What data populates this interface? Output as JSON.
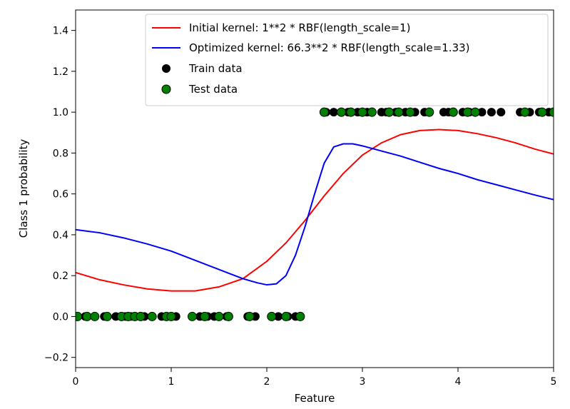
{
  "chart_data": {
    "type": "scatter",
    "xlabel": "Feature",
    "ylabel": "Class 1 probability",
    "xlim": [
      0,
      5
    ],
    "ylim": [
      -0.25,
      1.5
    ],
    "x_ticks": [
      0,
      1,
      2,
      3,
      4,
      5
    ],
    "x_tick_labels": [
      "0",
      "1",
      "2",
      "3",
      "4",
      "5"
    ],
    "y_ticks": [
      -0.2,
      0.0,
      0.2,
      0.4,
      0.6,
      0.8,
      1.0,
      1.2,
      1.4
    ],
    "y_tick_labels": [
      "−0.2",
      "0.0",
      "0.2",
      "0.4",
      "0.6",
      "0.8",
      "1.0",
      "1.2",
      "1.4"
    ],
    "grid": false,
    "legend_position": "top-right",
    "series": [
      {
        "name": "Initial kernel: 1**2 * RBF(length_scale=1)",
        "kind": "line",
        "color": "#ff0000",
        "points": [
          [
            0.0,
            0.215
          ],
          [
            0.25,
            0.18
          ],
          [
            0.5,
            0.155
          ],
          [
            0.75,
            0.135
          ],
          [
            1.0,
            0.125
          ],
          [
            1.25,
            0.125
          ],
          [
            1.5,
            0.145
          ],
          [
            1.75,
            0.185
          ],
          [
            2.0,
            0.27
          ],
          [
            2.2,
            0.36
          ],
          [
            2.4,
            0.47
          ],
          [
            2.6,
            0.59
          ],
          [
            2.8,
            0.7
          ],
          [
            3.0,
            0.79
          ],
          [
            3.2,
            0.85
          ],
          [
            3.4,
            0.89
          ],
          [
            3.6,
            0.91
          ],
          [
            3.8,
            0.915
          ],
          [
            4.0,
            0.91
          ],
          [
            4.2,
            0.895
          ],
          [
            4.4,
            0.875
          ],
          [
            4.6,
            0.85
          ],
          [
            4.8,
            0.82
          ],
          [
            5.0,
            0.795
          ]
        ]
      },
      {
        "name": "Optimized kernel: 66.3**2 * RBF(length_scale=1.33)",
        "kind": "line",
        "color": "#0000ff",
        "points": [
          [
            0.0,
            0.425
          ],
          [
            0.25,
            0.41
          ],
          [
            0.5,
            0.385
          ],
          [
            0.75,
            0.355
          ],
          [
            1.0,
            0.32
          ],
          [
            1.25,
            0.275
          ],
          [
            1.5,
            0.23
          ],
          [
            1.75,
            0.185
          ],
          [
            1.9,
            0.165
          ],
          [
            2.0,
            0.155
          ],
          [
            2.1,
            0.16
          ],
          [
            2.2,
            0.2
          ],
          [
            2.3,
            0.3
          ],
          [
            2.4,
            0.44
          ],
          [
            2.5,
            0.6
          ],
          [
            2.6,
            0.75
          ],
          [
            2.7,
            0.83
          ],
          [
            2.8,
            0.845
          ],
          [
            2.9,
            0.845
          ],
          [
            3.0,
            0.835
          ],
          [
            3.2,
            0.81
          ],
          [
            3.4,
            0.785
          ],
          [
            3.6,
            0.755
          ],
          [
            3.8,
            0.725
          ],
          [
            4.0,
            0.7
          ],
          [
            4.2,
            0.67
          ],
          [
            4.4,
            0.645
          ],
          [
            4.6,
            0.62
          ],
          [
            4.8,
            0.595
          ],
          [
            5.0,
            0.572
          ]
        ]
      },
      {
        "name": "Train data",
        "kind": "scatter",
        "color": "#000000",
        "x": [
          0.0,
          0.1,
          0.3,
          0.42,
          0.52,
          0.58,
          0.72,
          0.9,
          1.05,
          1.3,
          1.38,
          1.45,
          1.58,
          1.8,
          1.88,
          2.05,
          2.12,
          2.22,
          2.3,
          2.62,
          2.7,
          2.85,
          2.95,
          3.05,
          3.2,
          3.25,
          3.35,
          3.45,
          3.55,
          3.65,
          3.85,
          3.9,
          4.05,
          4.12,
          4.25,
          4.35,
          4.45,
          4.65,
          4.75,
          4.85,
          4.95
        ],
        "y": [
          0,
          0,
          0,
          0,
          0,
          0,
          0,
          0,
          0,
          0,
          0,
          0,
          0,
          0,
          0,
          0,
          0,
          0,
          0,
          1,
          1,
          1,
          1,
          1,
          1,
          1,
          1,
          1,
          1,
          1,
          1,
          1,
          1,
          1,
          1,
          1,
          1,
          1,
          1,
          1,
          1
        ]
      },
      {
        "name": "Test data",
        "kind": "scatter",
        "color": "#008000",
        "x": [
          0.02,
          0.12,
          0.2,
          0.33,
          0.48,
          0.55,
          0.62,
          0.68,
          0.8,
          0.95,
          1.0,
          1.22,
          1.35,
          1.5,
          1.6,
          1.82,
          2.05,
          2.2,
          2.35,
          2.6,
          2.78,
          2.88,
          3.0,
          3.1,
          3.28,
          3.38,
          3.5,
          3.7,
          3.95,
          4.1,
          4.18,
          4.7,
          4.88,
          5.0
        ],
        "y": [
          0,
          0,
          0,
          0,
          0,
          0,
          0,
          0,
          0,
          0,
          0,
          0,
          0,
          0,
          0,
          0,
          0,
          0,
          0,
          1,
          1,
          1,
          1,
          1,
          1,
          1,
          1,
          1,
          1,
          1,
          1,
          1,
          1,
          1
        ]
      }
    ]
  }
}
